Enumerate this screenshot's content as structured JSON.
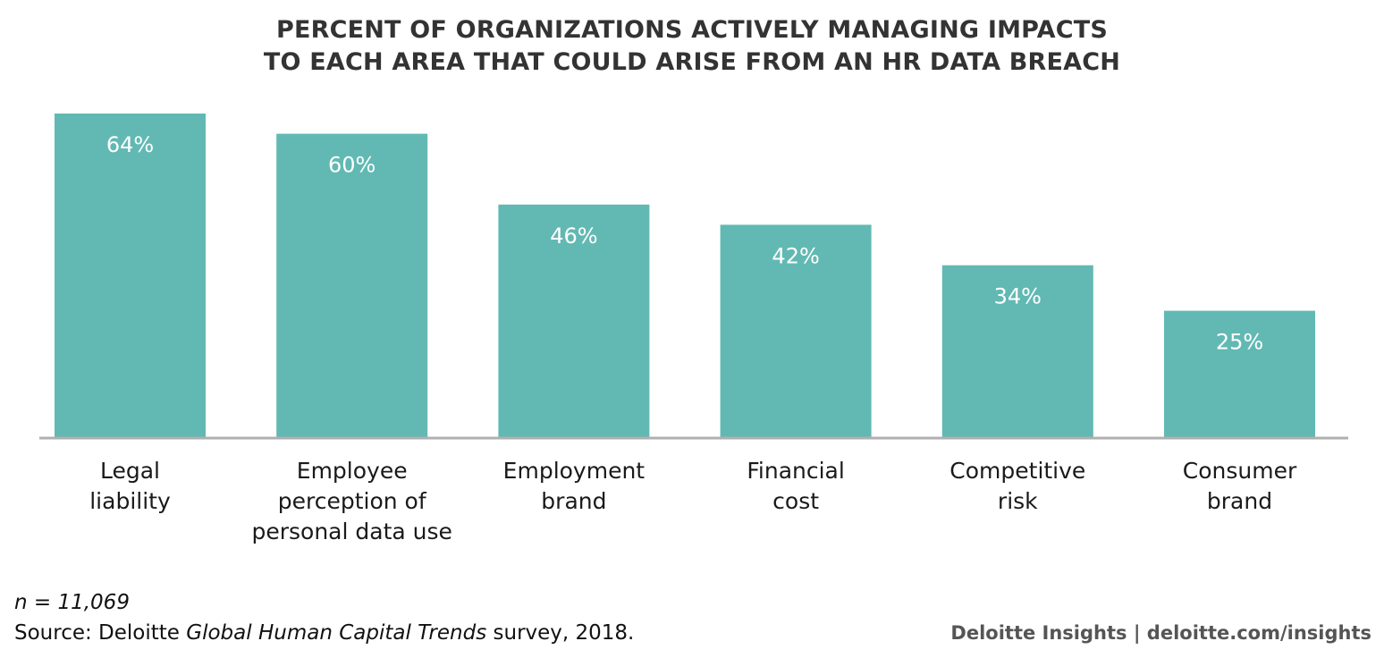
{
  "chart_data": {
    "type": "bar",
    "title_lines": [
      "PERCENT OF ORGANIZATIONS ACTIVELY MANAGING IMPACTS",
      "TO EACH AREA THAT COULD ARISE FROM AN HR DATA BREACH"
    ],
    "categories": [
      [
        "Legal",
        "liability"
      ],
      [
        "Employee",
        "perception of",
        "personal data use"
      ],
      [
        "Employment",
        "brand"
      ],
      [
        "Financial",
        "cost"
      ],
      [
        "Competitive",
        "risk"
      ],
      [
        "Consumer",
        "brand"
      ]
    ],
    "values": [
      64,
      60,
      46,
      42,
      34,
      25
    ],
    "value_labels": [
      "64%",
      "60%",
      "46%",
      "42%",
      "34%",
      "25%"
    ],
    "ylim": [
      0,
      64
    ],
    "bar_color": "#62b9b3",
    "axis_color": "#b0b0b0",
    "value_label_color": "#ffffff",
    "grid": false,
    "legend": "none"
  },
  "footer": {
    "note": "n = 11,069",
    "source_prefix": "Source: Deloitte ",
    "source_italic": "Global Human Capital Trends",
    "source_suffix": " survey, 2018.",
    "brand": "Deloitte Insights | deloitte.com/insights"
  }
}
